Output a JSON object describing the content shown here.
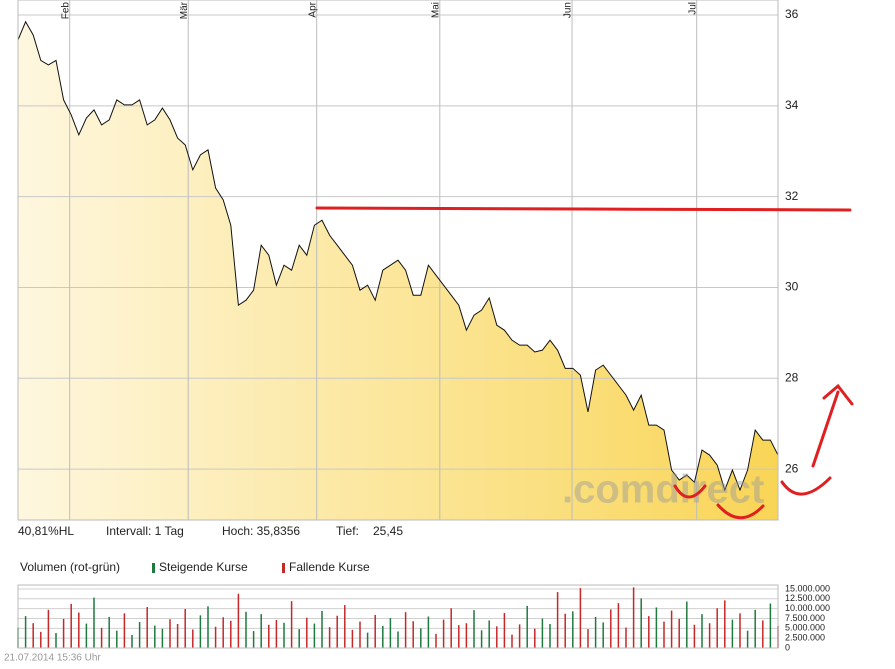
{
  "chart_data": [
    {
      "type": "area",
      "color": "#f7cf4a",
      "line_color": "#111111",
      "values": [
        35.45,
        35.85,
        35.56,
        35.0,
        34.9,
        35.0,
        34.13,
        33.8,
        33.36,
        33.73,
        33.91,
        33.58,
        33.69,
        34.13,
        34.02,
        34.02,
        34.13,
        33.58,
        33.69,
        33.95,
        33.69,
        33.29,
        33.14,
        32.59,
        32.92,
        33.03,
        32.19,
        31.93,
        31.37,
        29.61,
        29.72,
        29.94,
        30.93,
        30.71,
        30.05,
        30.49,
        30.38,
        30.93,
        30.71,
        31.37,
        31.48,
        31.15,
        30.93,
        30.71,
        30.49,
        29.94,
        30.05,
        29.72,
        30.38,
        30.49,
        30.6,
        30.38,
        29.83,
        29.83,
        30.49,
        30.27,
        30.05,
        29.83,
        29.61,
        29.06,
        29.39,
        29.5,
        29.77,
        29.17,
        29.06,
        28.84,
        28.73,
        28.73,
        28.58,
        28.62,
        28.84,
        28.62,
        28.22,
        28.22,
        28.07,
        27.26,
        28.18,
        28.29,
        28.07,
        27.85,
        27.63,
        27.3,
        27.63,
        26.97,
        26.97,
        26.86,
        25.98,
        25.76,
        25.87,
        25.71,
        26.42,
        26.31,
        26.09,
        25.54,
        25.98,
        25.54,
        25.98,
        26.86,
        26.64,
        26.64,
        26.31
      ],
      "xlim": [
        0,
        100
      ],
      "xticks": [
        {
          "value": 6.8,
          "label": "Feb"
        },
        {
          "value": 22.4,
          "label": "Mär"
        },
        {
          "value": 39.3,
          "label": "Apr"
        },
        {
          "value": 55.5,
          "label": "Mai"
        },
        {
          "value": 72.9,
          "label": "Jun"
        },
        {
          "value": 89.3,
          "label": "Jul"
        }
      ],
      "ylim": [
        24.88,
        36.33
      ],
      "yticks": [
        26,
        28,
        30,
        32,
        34,
        36
      ],
      "grid": true
    },
    {
      "type": "bar",
      "title": "Volumen (rot-grün)",
      "legend": [
        {
          "name": "Steigende Kurse",
          "color": "#1f7a3f"
        },
        {
          "name": "Fallende Kurse",
          "color": "#c62828"
        }
      ],
      "values": [
        5200000,
        8100000,
        6300000,
        4100000,
        9700000,
        3800000,
        7400000,
        11200000,
        9000000,
        6200000,
        12800000,
        5100000,
        7900000,
        4400000,
        8800000,
        3300000,
        6600000,
        10400000,
        5700000,
        4900000,
        7300000,
        6100000,
        9900000,
        4700000,
        8300000,
        10600000,
        5400000,
        7800000,
        6900000,
        13800000,
        9200000,
        4300000,
        8600000,
        5900000,
        7100000,
        6400000,
        11900000,
        4800000,
        7700000,
        6200000,
        9400000,
        5300000,
        8200000,
        10900000,
        4600000,
        6700000,
        3900000,
        8400000,
        5600000,
        7600000,
        4200000,
        9100000,
        6800000,
        5000000,
        8000000,
        3600000,
        7200000,
        10100000,
        5800000,
        6300000,
        9600000,
        4500000,
        7000000,
        5500000,
        8900000,
        3400000,
        6000000,
        10700000,
        4900000,
        7500000,
        6100000,
        14200000,
        8700000,
        9300000,
        15200000,
        4800000,
        7900000,
        6500000,
        9800000,
        11400000,
        5200000,
        15400000,
        12600000,
        8100000,
        10300000,
        6700000,
        9500000,
        7400000,
        11800000,
        5900000,
        8600000,
        6300000,
        10100000,
        12100000,
        7200000,
        8800000,
        4400000,
        9700000,
        7000000,
        11300000,
        5600000
      ],
      "xlim": [
        0,
        100
      ],
      "ylim": [
        0,
        16000000
      ],
      "yticks": [
        {
          "value": 15000000,
          "label": "15.000.000"
        },
        {
          "value": 12500000,
          "label": "12.500.000"
        },
        {
          "value": 10000000,
          "label": "10.000.000"
        },
        {
          "value": 7500000,
          "label": "7.500.000"
        },
        {
          "value": 5000000,
          "label": "5.000.000"
        },
        {
          "value": 2500000,
          "label": "2.500.000"
        },
        0
      ]
    }
  ],
  "stats": [
    "40,81%HL",
    "Intervall: 1 Tag",
    "Hoch: 35,8356",
    "Tief:",
    "25,45"
  ],
  "watermark": ".comdirect",
  "footer": "21.07.2014 15:36 Uhr"
}
